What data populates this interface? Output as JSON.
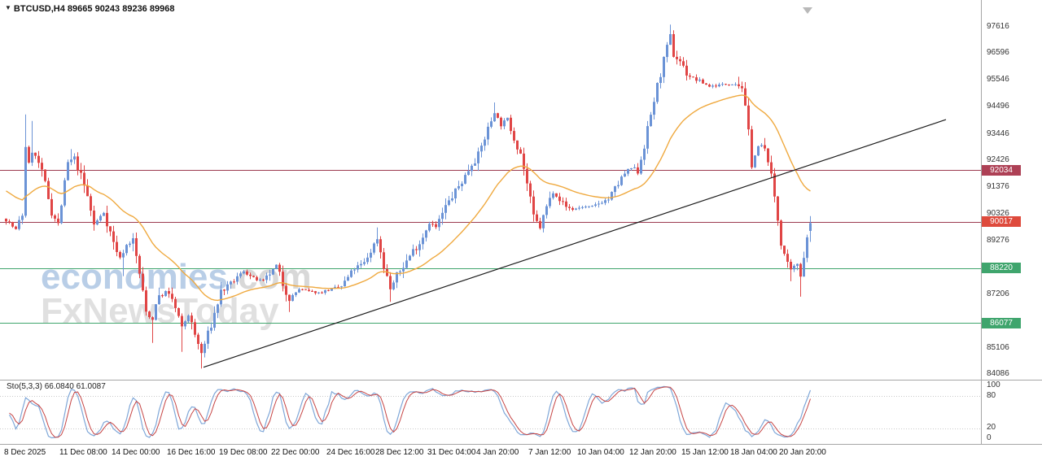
{
  "header": {
    "symbol_line": "BTCUSD,H4 89665 90243 89236 89968"
  },
  "watermark": {
    "line1_blue": "economies",
    "line1_gray": ".com",
    "line2": "FxNewsToday"
  },
  "chart_data": {
    "type": "candlestick",
    "symbol": "BTCUSD",
    "timeframe": "H4",
    "last_ohlc": {
      "open": 89665,
      "high": 90243,
      "low": 89236,
      "close": 89968
    },
    "ylim": [
      84086,
      97616
    ],
    "price_axis": {
      "top": 97616,
      "bottom": 84086,
      "ticks": [
        97616,
        96596,
        95546,
        94496,
        93446,
        92426,
        91376,
        90326,
        89276,
        87206,
        85106,
        84086
      ]
    },
    "levels": [
      {
        "price": 92034,
        "label": "92034",
        "type": "resistance",
        "line_color": "#9c3b50",
        "badge_color": "#ad4055"
      },
      {
        "price": 90017,
        "label": "90017",
        "type": "current",
        "line_color": "#9c3b50",
        "badge_color": "#de4a3c"
      },
      {
        "price": 88220,
        "label": "88220",
        "type": "support",
        "line_color": "#3fa56d",
        "badge_color": "#3fa56d"
      },
      {
        "price": 86077,
        "label": "86077",
        "type": "support",
        "line_color": "#3fa56d",
        "badge_color": "#3fa56d"
      }
    ],
    "trendline": {
      "i1": 61,
      "price1": 84350,
      "i2": 289,
      "price2": 94000,
      "color": "#1c1c1c"
    },
    "moving_average": {
      "period": 30,
      "seed": 91300,
      "color": "#efa93f"
    },
    "candles": {
      "count": 248,
      "seed": 7,
      "up_color": "#6b93d6",
      "down_color": "#e04545",
      "close_waypoints": [
        [
          0,
          90100
        ],
        [
          3,
          89700
        ],
        [
          5,
          90300
        ],
        [
          6,
          93000
        ],
        [
          7,
          92200
        ],
        [
          8,
          92800
        ],
        [
          10,
          92300
        ],
        [
          12,
          91500
        ],
        [
          14,
          90400
        ],
        [
          16,
          89900
        ],
        [
          19,
          92300
        ],
        [
          21,
          92500
        ],
        [
          23,
          91800
        ],
        [
          25,
          91000
        ],
        [
          27,
          89900
        ],
        [
          30,
          90400
        ],
        [
          33,
          89200
        ],
        [
          35,
          88600
        ],
        [
          37,
          89100
        ],
        [
          39,
          89300
        ],
        [
          41,
          88000
        ],
        [
          43,
          86500
        ],
        [
          45,
          86200
        ],
        [
          46,
          86900
        ],
        [
          49,
          87300
        ],
        [
          51,
          87000
        ],
        [
          54,
          85900
        ],
        [
          56,
          86400
        ],
        [
          58,
          85600
        ],
        [
          60,
          84900
        ],
        [
          63,
          86000
        ],
        [
          66,
          87300
        ],
        [
          69,
          87600
        ],
        [
          73,
          88100
        ],
        [
          76,
          87800
        ],
        [
          79,
          87700
        ],
        [
          83,
          88300
        ],
        [
          85,
          87600
        ],
        [
          87,
          87000
        ],
        [
          90,
          87400
        ],
        [
          93,
          87300
        ],
        [
          96,
          87250
        ],
        [
          100,
          87400
        ],
        [
          103,
          87500
        ],
        [
          107,
          88200
        ],
        [
          110,
          88400
        ],
        [
          112,
          88900
        ],
        [
          114,
          89400
        ],
        [
          116,
          88300
        ],
        [
          118,
          87400
        ],
        [
          120,
          87900
        ],
        [
          122,
          88300
        ],
        [
          125,
          88900
        ],
        [
          127,
          89200
        ],
        [
          130,
          90000
        ],
        [
          132,
          89800
        ],
        [
          135,
          90600
        ],
        [
          138,
          91200
        ],
        [
          141,
          91800
        ],
        [
          143,
          92300
        ],
        [
          145,
          92600
        ],
        [
          147,
          93300
        ],
        [
          150,
          94300
        ],
        [
          152,
          93800
        ],
        [
          154,
          94000
        ],
        [
          156,
          93300
        ],
        [
          158,
          92700
        ],
        [
          160,
          91500
        ],
        [
          162,
          90200
        ],
        [
          164,
          89800
        ],
        [
          166,
          90600
        ],
        [
          168,
          91200
        ],
        [
          170,
          90900
        ],
        [
          172,
          90600
        ],
        [
          174,
          90500
        ],
        [
          177,
          90600
        ],
        [
          180,
          90600
        ],
        [
          183,
          90800
        ],
        [
          185,
          90900
        ],
        [
          188,
          91500
        ],
        [
          190,
          91900
        ],
        [
          192,
          92100
        ],
        [
          194,
          92000
        ],
        [
          196,
          93000
        ],
        [
          198,
          94200
        ],
        [
          200,
          95300
        ],
        [
          201,
          95800
        ],
        [
          203,
          96800
        ],
        [
          204,
          97300
        ],
        [
          205,
          96500
        ],
        [
          207,
          96300
        ],
        [
          209,
          95800
        ],
        [
          211,
          95600
        ],
        [
          213,
          95500
        ],
        [
          216,
          95300
        ],
        [
          219,
          95350
        ],
        [
          222,
          95400
        ],
        [
          224,
          95400
        ],
        [
          226,
          95300
        ],
        [
          228,
          93500
        ],
        [
          229,
          92300
        ],
        [
          231,
          92900
        ],
        [
          232,
          93000
        ],
        [
          234,
          92500
        ],
        [
          236,
          91000
        ],
        [
          238,
          89200
        ],
        [
          240,
          88300
        ],
        [
          241,
          88100
        ],
        [
          243,
          88400
        ],
        [
          244,
          88000
        ],
        [
          246,
          89400
        ],
        [
          247,
          89968
        ]
      ],
      "wick_events": [
        {
          "i": 6,
          "high": 94200
        },
        {
          "i": 8,
          "high": 93950
        },
        {
          "i": 20,
          "high": 92850
        },
        {
          "i": 36,
          "low": 87900
        },
        {
          "i": 45,
          "low": 85300
        },
        {
          "i": 54,
          "low": 84950
        },
        {
          "i": 60,
          "low": 84300
        },
        {
          "i": 87,
          "low": 86500
        },
        {
          "i": 114,
          "high": 89800
        },
        {
          "i": 118,
          "low": 86900
        },
        {
          "i": 150,
          "high": 94670
        },
        {
          "i": 204,
          "high": 97700
        },
        {
          "i": 241,
          "low": 87700
        },
        {
          "i": 244,
          "low": 87100
        }
      ]
    },
    "date_labels": [
      {
        "label": "8 Dec 2025",
        "i": 0
      },
      {
        "label": "11 Dec 08:00",
        "i": 17
      },
      {
        "label": "14 Dec 00:00",
        "i": 33
      },
      {
        "label": "16 Dec 16:00",
        "i": 50
      },
      {
        "label": "19 Dec 08:00",
        "i": 66
      },
      {
        "label": "22 Dec 00:00",
        "i": 82
      },
      {
        "label": "24 Dec 16:00",
        "i": 99
      },
      {
        "label": "28 Dec 12:00",
        "i": 114
      },
      {
        "label": "31 Dec 04:00",
        "i": 130
      },
      {
        "label": "4 Jan 20:00",
        "i": 145
      },
      {
        "label": "7 Jan 12:00",
        "i": 161
      },
      {
        "label": "10 Jan 04:00",
        "i": 176
      },
      {
        "label": "12 Jan 20:00",
        "i": 192
      },
      {
        "label": "15 Jan 12:00",
        "i": 208
      },
      {
        "label": "18 Jan 04:00",
        "i": 223
      },
      {
        "label": "20 Jan 20:00",
        "i": 238
      }
    ],
    "stochastic": {
      "label": "Sto(5,3,3) 66.0840 61.0087",
      "k": 5,
      "d": 3,
      "slowing": 3,
      "main_value": 66.084,
      "signal_value": 61.0087,
      "levels": [
        80,
        20
      ],
      "scale": [
        "100",
        "80",
        "20",
        "0"
      ],
      "main_color": "#7fa7d8",
      "signal_color": "#c64545"
    }
  }
}
